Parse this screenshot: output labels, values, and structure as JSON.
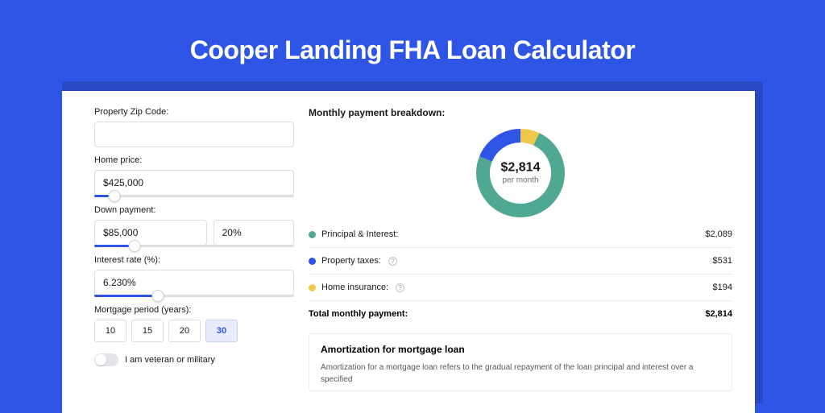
{
  "page": {
    "title": "Cooper Landing FHA Loan Calculator",
    "background_color": "#2f55e6",
    "back_panel_color": "#2848c6",
    "card_color": "#ffffff"
  },
  "form": {
    "zip": {
      "label": "Property Zip Code:",
      "value": ""
    },
    "home_price": {
      "label": "Home price:",
      "value": "$425,000",
      "slider_pct": 10
    },
    "down_payment": {
      "label": "Down payment:",
      "amount": "$85,000",
      "pct": "20%",
      "slider_pct": 20
    },
    "interest_rate": {
      "label": "Interest rate (%):",
      "value": "6.230%",
      "slider_pct": 32
    },
    "mortgage_period": {
      "label": "Mortgage period (years):",
      "options": [
        "10",
        "15",
        "20",
        "30"
      ],
      "selected": "30"
    },
    "veteran_toggle": {
      "label": "I am veteran or military",
      "on": false
    }
  },
  "breakdown": {
    "title": "Monthly payment breakdown:",
    "donut": {
      "center_value": "$2,814",
      "center_label": "per month",
      "slices": [
        {
          "name": "Principal & Interest",
          "value": 2089,
          "color": "#51a892",
          "angle_start": 0,
          "angle_end": 267.2
        },
        {
          "name": "Property taxes",
          "value": 531,
          "color": "#2f55e6",
          "angle_start": 267.2,
          "angle_end": 335.2
        },
        {
          "name": "Home insurance",
          "value": 194,
          "color": "#f0c94c",
          "angle_start": 335.2,
          "angle_end": 360
        }
      ],
      "thickness": 17,
      "radius_outer": 55,
      "background": "#ffffff"
    },
    "items": [
      {
        "label": "Principal & Interest:",
        "value": "$2,089",
        "color": "#51a892",
        "info": false
      },
      {
        "label": "Property taxes:",
        "value": "$531",
        "color": "#2f55e6",
        "info": true
      },
      {
        "label": "Home insurance:",
        "value": "$194",
        "color": "#f0c94c",
        "info": true
      }
    ],
    "total": {
      "label": "Total monthly payment:",
      "value": "$2,814"
    }
  },
  "amortization": {
    "title": "Amortization for mortgage loan",
    "text": "Amortization for a mortgage loan refers to the gradual repayment of the loan principal and interest over a specified"
  }
}
